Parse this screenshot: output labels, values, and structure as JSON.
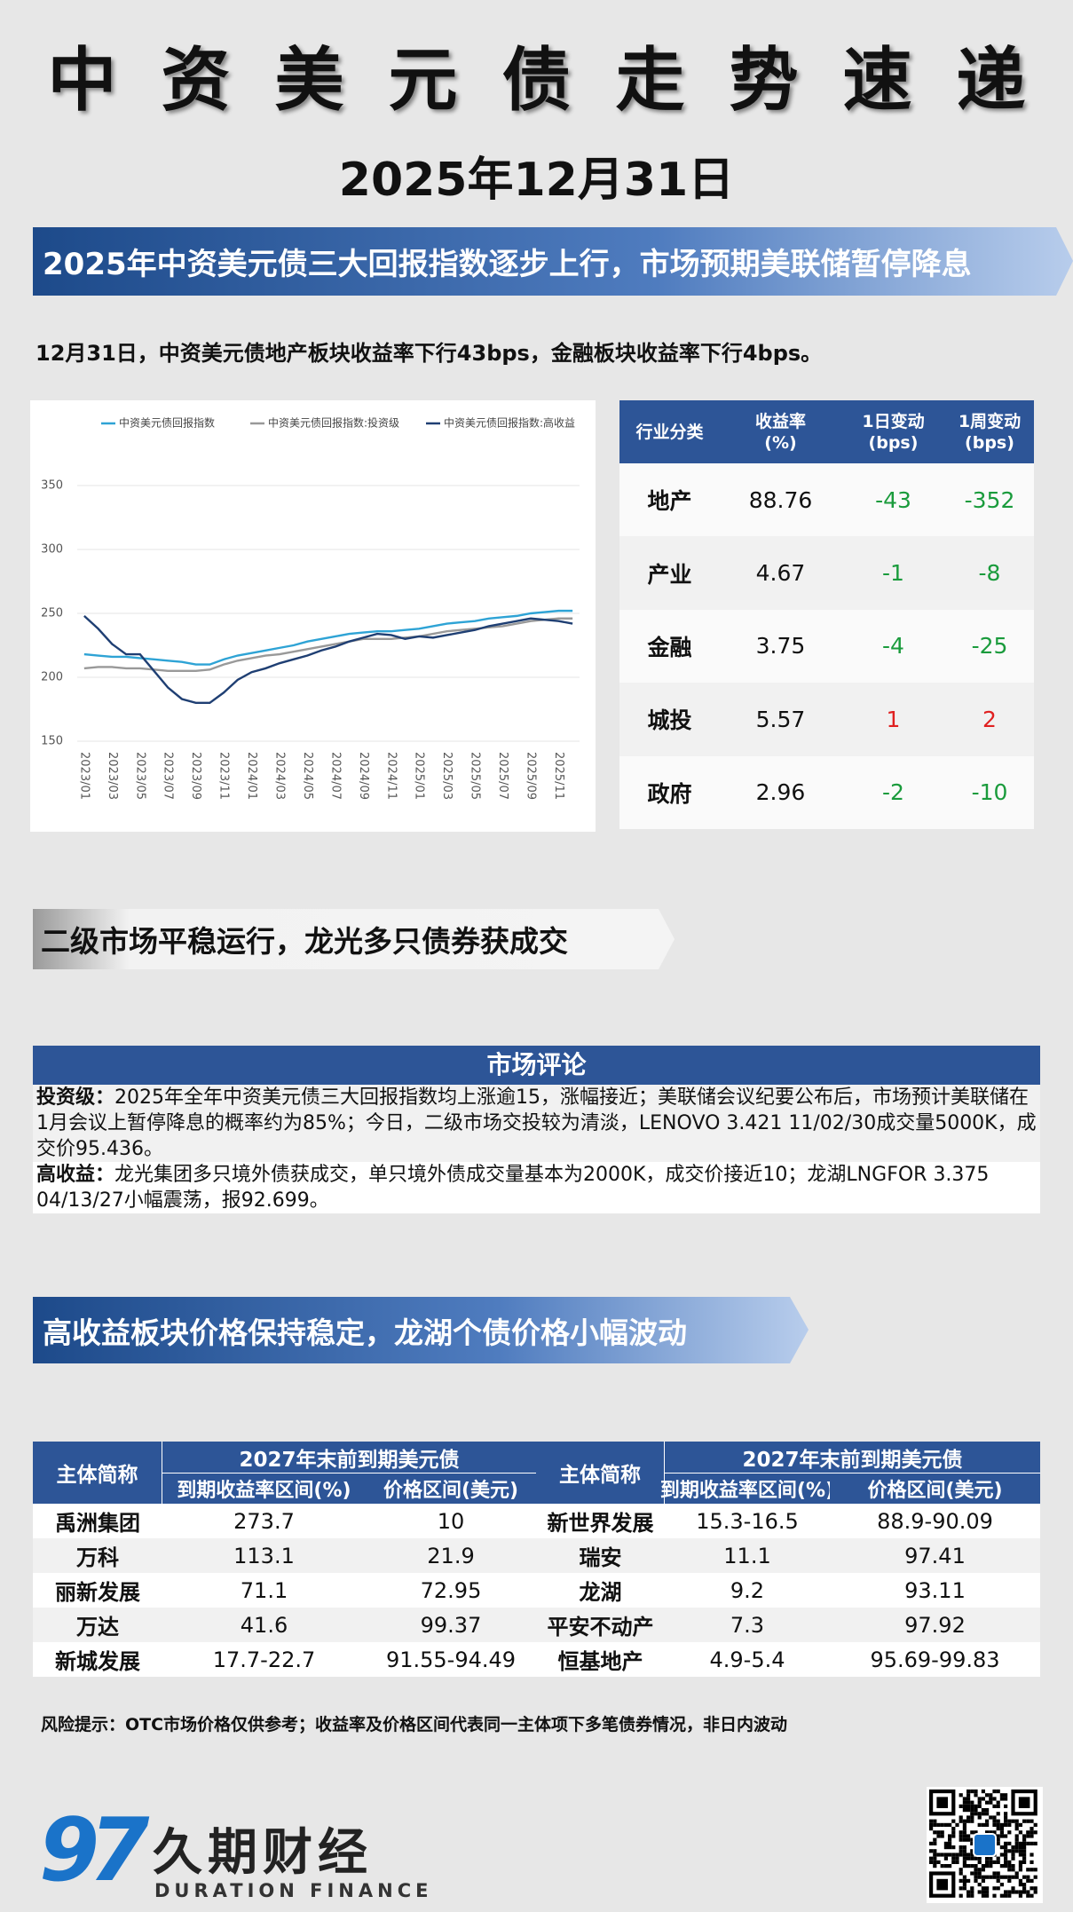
{
  "header": {
    "title": "中资美元债走势速递",
    "date": "2025年12月31日"
  },
  "banner1": "2025年中资美元债三大回报指数逐步上行，市场预期美联储暂停降息",
  "summary": "12月31日，中资美元债地产板块收益率下行43bps，金融板块收益率下行4bps。",
  "chart_data": {
    "type": "line",
    "categories": [
      "2023/01",
      null,
      "2023/03",
      null,
      "2023/05",
      null,
      "2023/07",
      null,
      "2023/09",
      null,
      "2023/11",
      null,
      "2024/01",
      null,
      "2024/03",
      null,
      "2024/05",
      null,
      "2024/07",
      null,
      "2024/09",
      null,
      "2024/11",
      null,
      "2025/01",
      null,
      "2025/03",
      null,
      "2025/05",
      null,
      "2025/07",
      null,
      "2025/09",
      null,
      "2025/11",
      null
    ],
    "series": [
      {
        "name": "中资美元债回报指数",
        "color": "#2ea3d5",
        "values": [
          218,
          217,
          216,
          216,
          215,
          214,
          213,
          212,
          210,
          210,
          214,
          217,
          219,
          221,
          223,
          225,
          228,
          230,
          232,
          234,
          235,
          236,
          236,
          237,
          238,
          240,
          242,
          243,
          244,
          246,
          247,
          248,
          250,
          251,
          252,
          252
        ]
      },
      {
        "name": "中资美元债回报指数:投资级",
        "color": "#999999",
        "values": [
          207,
          208,
          208,
          207,
          207,
          206,
          205,
          205,
          205,
          206,
          210,
          213,
          215,
          217,
          218,
          220,
          222,
          224,
          226,
          228,
          230,
          230,
          230,
          231,
          232,
          234,
          236,
          237,
          238,
          239,
          240,
          242,
          244,
          245,
          246,
          246
        ]
      },
      {
        "name": "中资美元债回报指数:高收益",
        "color": "#1f3f73",
        "values": [
          248,
          238,
          226,
          218,
          218,
          205,
          192,
          183,
          180,
          180,
          188,
          198,
          204,
          207,
          211,
          214,
          217,
          221,
          224,
          228,
          231,
          234,
          233,
          230,
          232,
          231,
          233,
          235,
          237,
          240,
          242,
          244,
          246,
          245,
          244,
          242
        ]
      }
    ],
    "ylim": [
      150,
      350
    ],
    "yticks": [
      150,
      200,
      250,
      300,
      350
    ],
    "grid": true
  },
  "sector_table": {
    "columns": [
      [
        "行业分类"
      ],
      [
        "收益率",
        "(%)"
      ],
      [
        "1日变动",
        "(bps)"
      ],
      [
        "1周变动",
        "(bps)"
      ]
    ],
    "rows": [
      [
        "地产",
        88.76,
        -43,
        -352
      ],
      [
        "产业",
        4.67,
        -1,
        -8
      ],
      [
        "金融",
        3.75,
        -4,
        -25
      ],
      [
        "城投",
        5.57,
        1,
        2
      ],
      [
        "政府",
        2.96,
        -2,
        -10
      ]
    ]
  },
  "banner2": "二级市场平稳运行，龙光多只债券获成交",
  "commentary": {
    "title": "市场评论",
    "paragraphs": [
      {
        "label": "投资级：",
        "text": "2025年全年中资美元债三大回报指数均上涨逾15，涨幅接近；美联储会议纪要公布后，市场预计美联储在1月会议上暂停降息的概率约为85%；今日，二级市场交投较为清淡，LENOVO 3.421 11/02/30成交量5000K，成交价95.436。"
      },
      {
        "label": "高收益：",
        "text": "龙光集团多只境外债获成交，单只境外债成交量基本为2000K，成交价接近10；龙湖LNGFOR 3.375 04/13/27小幅震荡，报92.699。"
      }
    ]
  },
  "banner3": "高收益板块价格保持稳定，龙湖个债价格小幅波动",
  "price_table": {
    "groups": [
      {
        "name_header": "主体简称",
        "title": "2027年末前到期美元债",
        "subheaders": [
          "到期收益率区间(%)",
          "价格区间(美元)"
        ],
        "rows": [
          [
            "禹洲集团",
            "273.7",
            "10"
          ],
          [
            "万科",
            "113.1",
            "21.9"
          ],
          [
            "丽新发展",
            "71.1",
            "72.95"
          ],
          [
            "万达",
            "41.6",
            "99.37"
          ],
          [
            "新城发展",
            "17.7-22.7",
            "91.55-94.49"
          ]
        ]
      },
      {
        "name_header": "主体简称",
        "title": "2027年末前到期美元债",
        "subheaders": [
          "到期收益率区间(%)",
          "价格区间(美元)"
        ],
        "rows": [
          [
            "新世界发展",
            "15.3-16.5",
            "88.9-90.09"
          ],
          [
            "瑞安",
            "11.1",
            "97.41"
          ],
          [
            "龙湖",
            "9.2",
            "93.11"
          ],
          [
            "平安不动产",
            "7.3",
            "97.92"
          ],
          [
            "恒基地产",
            "4.9-5.4",
            "95.69-99.83"
          ]
        ]
      }
    ]
  },
  "risk_note": "风险提示：OTC市场价格仅供参考；收益率及价格区间代表同一主体项下多笔债券情况，非日内波动",
  "footer": {
    "logo_mark": "97",
    "brand": "久期财经",
    "brand_en": "DURATION FINANCE"
  }
}
